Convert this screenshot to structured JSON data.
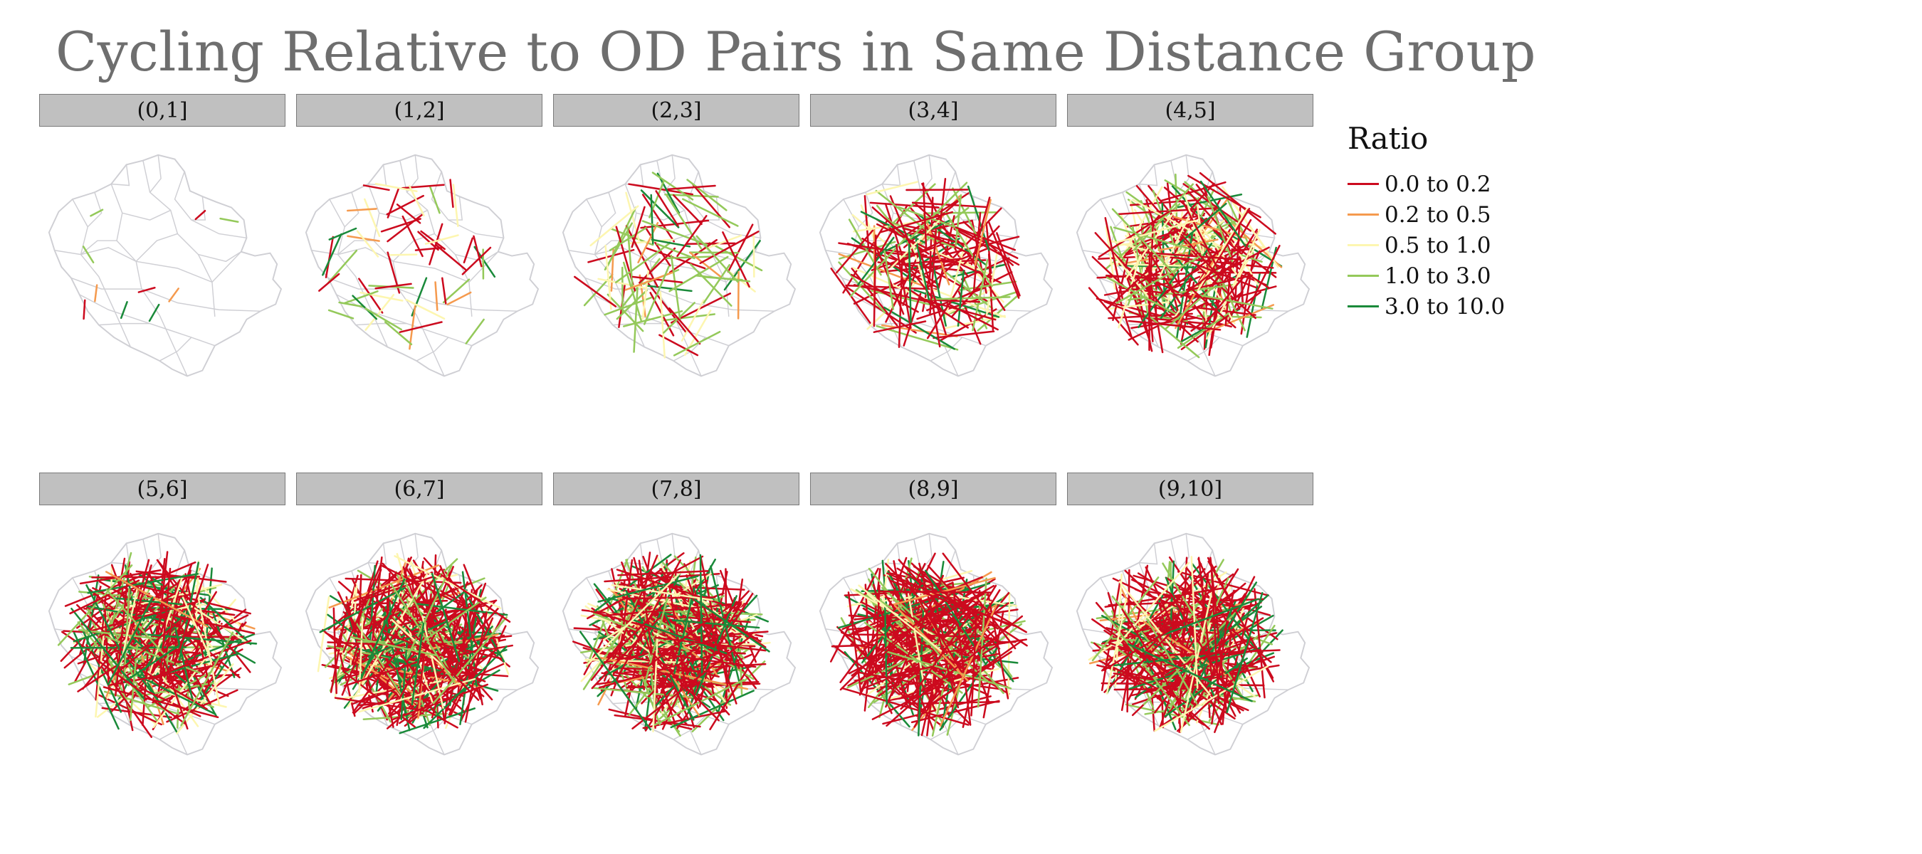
{
  "title": "Cycling Relative to OD Pairs in Same Distance Group",
  "legend": {
    "title": "Ratio",
    "items": [
      {
        "label": "0.0 to 0.2",
        "color": "#cc0a1e"
      },
      {
        "label": "0.2 to 0.5",
        "color": "#f59a4e"
      },
      {
        "label": "0.5 to 1.0",
        "color": "#fdf6b0"
      },
      {
        "label": "1.0 to 3.0",
        "color": "#94c95a"
      },
      {
        "label": "3.0 to 10.0",
        "color": "#1a8a3a"
      }
    ]
  },
  "panels": [
    {
      "label": "(0,1]"
    },
    {
      "label": "(1,2]"
    },
    {
      "label": "(2,3]"
    },
    {
      "label": "(3,4]"
    },
    {
      "label": "(4,5]"
    },
    {
      "label": "(5,6]"
    },
    {
      "label": "(6,7]"
    },
    {
      "label": "(7,8]"
    },
    {
      "label": "(8,9]"
    },
    {
      "label": "(9,10]"
    }
  ],
  "map_style": {
    "boundary_color": "#cfcfd4",
    "boundary_fill": "#ffffff"
  }
}
